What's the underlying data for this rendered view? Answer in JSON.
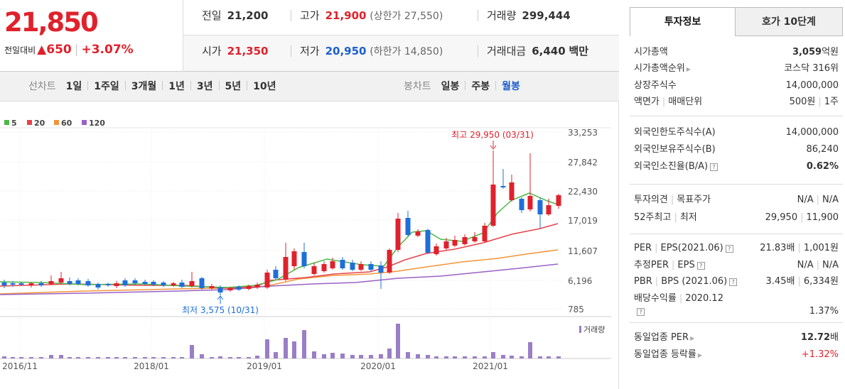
{
  "quote": {
    "price": "21,850",
    "change_label": "전일대비",
    "change_arrow": "▲",
    "change_amount": "650",
    "change_rate": "+3.07%",
    "prev_close_label": "전일",
    "prev_close": "21,200",
    "high_label": "고가",
    "high": "21,900",
    "upper_limit": "(상한가 27,550)",
    "volume_label": "거래량",
    "volume": "299,444",
    "open_label": "시가",
    "open": "21,350",
    "low_label": "저가",
    "low": "20,950",
    "lower_limit": "(하한가 14,850)",
    "value_label": "거래대금",
    "value": "6,440",
    "value_unit": "백만"
  },
  "toolbar": {
    "line_label": "선차트",
    "periods": [
      "1일",
      "1주일",
      "3개월",
      "1년",
      "3년",
      "5년",
      "10년"
    ],
    "candle_label": "봉차트",
    "candles": [
      "일봉",
      "주봉",
      "월봉"
    ],
    "active_candle": "월봉"
  },
  "chart_data": {
    "type": "candlestick",
    "legend": [
      {
        "name": "5",
        "color": "#4cb845"
      },
      {
        "name": "20",
        "color": "#e8424a"
      },
      {
        "name": "60",
        "color": "#f19538"
      },
      {
        "name": "120",
        "color": "#9a61c4"
      }
    ],
    "y_ticks": [
      "33,253",
      "27,842",
      "22,430",
      "17,019",
      "11,607",
      "6,196",
      "785"
    ],
    "x_ticks": [
      "2016/11",
      "2018/01",
      "2019/01",
      "2020/01",
      "2021/01"
    ],
    "max_annotation": "최고 29,950 (03/31)",
    "min_annotation": "최저 3,575 (10/31)",
    "volume_label": "거래량",
    "up_color": "#e0212c",
    "down_color": "#1e6fd9"
  },
  "invest": {
    "tabs": [
      "투자정보",
      "호가 10단계"
    ],
    "s1": [
      {
        "k": "시가총액",
        "v": "3,059",
        "unit": "억원"
      },
      {
        "k": "시가총액순위",
        "v": "코스닥 316위"
      },
      {
        "k": "상장주식수",
        "v": "14,000,000"
      },
      {
        "k": "액면가",
        "k2": "매매단위",
        "v": "500원",
        "v2": "1주"
      }
    ],
    "s2": [
      {
        "k": "외국인한도주식수(A)",
        "v": "14,000,000"
      },
      {
        "k": "외국인보유주식수(B)",
        "v": "86,240"
      },
      {
        "k": "외국인소진율(B/A)",
        "v": "0.62%"
      }
    ],
    "s3": [
      {
        "k": "투자의견",
        "k2": "목표주가",
        "v": "N/A",
        "v2": "N/A"
      },
      {
        "k": "52주최고",
        "k2": "최저",
        "v": "29,950",
        "v2": "11,900"
      }
    ],
    "s4": [
      {
        "k": "PER",
        "k2": "EPS(2021.06)",
        "v": "21.83배",
        "v2": "1,001원"
      },
      {
        "k": "추정PER",
        "k2": "EPS",
        "v": "N/A",
        "v2": "N/A"
      },
      {
        "k": "PBR",
        "k2": "BPS (2021.06)",
        "v": "3.45배",
        "v2": "6,334원"
      },
      {
        "k": "배당수익률",
        "k2": "2020.12",
        "v": "1.37%"
      }
    ],
    "s5": [
      {
        "k": "동일업종 PER",
        "v": "12.72",
        "unit": "배"
      },
      {
        "k": "동일업종 등락률",
        "v": "+1.32%"
      }
    ]
  }
}
